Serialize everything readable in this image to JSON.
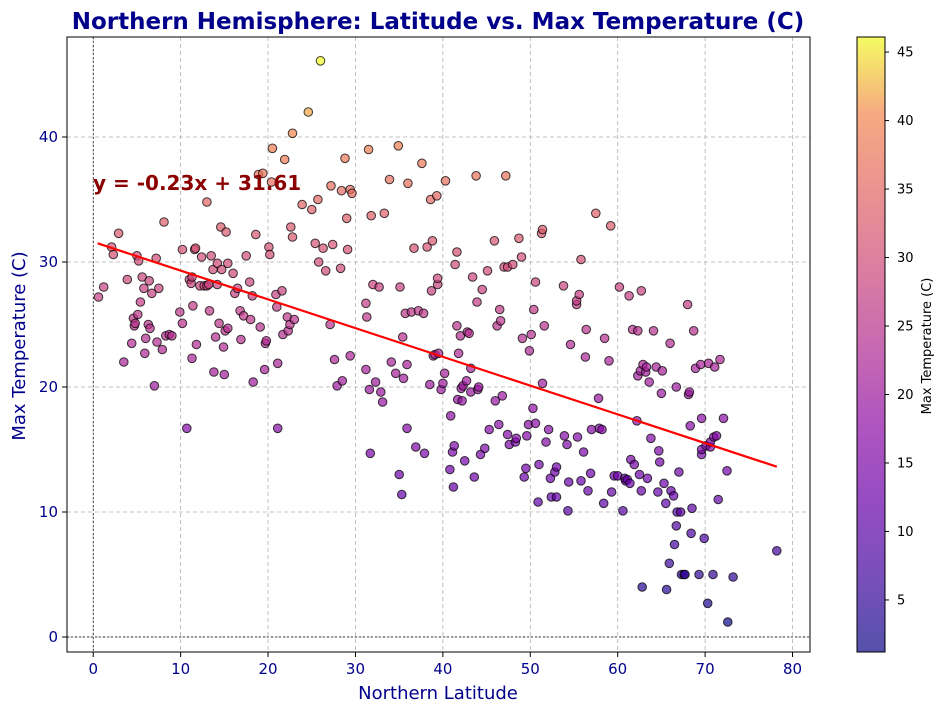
{
  "chart_data": {
    "type": "scatter",
    "title": "Northern Hemisphere: Latitude vs. Max Temperature (C)",
    "xlabel": "Northern Latitude",
    "ylabel": "Max Temperature (C)",
    "xlim": [
      -3,
      82
    ],
    "ylim": [
      -1.2,
      48
    ],
    "xticks": [
      0,
      10,
      20,
      30,
      40,
      50,
      60,
      70,
      80
    ],
    "yticks": [
      0,
      10,
      20,
      30,
      40
    ],
    "grid": true,
    "colormap": "plasma",
    "colorbar": {
      "label": "Max Temperature (C)",
      "range": [
        1.2,
        46.1
      ],
      "ticks": [
        5,
        10,
        15,
        20,
        25,
        30,
        35,
        40,
        45
      ]
    },
    "regression": {
      "slope": -0.23,
      "intercept": 31.61,
      "x_range": [
        0.5,
        78.2
      ],
      "equation": "y = -0.23x + 31.61",
      "color": "#ff0000"
    },
    "annotation_color": "#8b0000",
    "point_style": {
      "edge_color": "#000000",
      "alpha": 0.7
    },
    "points": [
      [
        0.6,
        27.2
      ],
      [
        1.2,
        28.0
      ],
      [
        2.1,
        31.2
      ],
      [
        2.3,
        30.6
      ],
      [
        2.9,
        32.3
      ],
      [
        3.5,
        22.0
      ],
      [
        3.9,
        28.6
      ],
      [
        4.4,
        23.5
      ],
      [
        4.6,
        25.5
      ],
      [
        4.7,
        24.9
      ],
      [
        4.8,
        25.1
      ],
      [
        5.0,
        30.5
      ],
      [
        5.1,
        25.8
      ],
      [
        5.2,
        30.1
      ],
      [
        5.4,
        26.8
      ],
      [
        5.6,
        28.8
      ],
      [
        5.8,
        27.9
      ],
      [
        5.9,
        22.7
      ],
      [
        6.0,
        23.9
      ],
      [
        6.3,
        25.0
      ],
      [
        6.4,
        28.5
      ],
      [
        6.5,
        24.7
      ],
      [
        6.7,
        27.5
      ],
      [
        7.0,
        20.1
      ],
      [
        7.2,
        30.3
      ],
      [
        7.3,
        23.6
      ],
      [
        7.5,
        27.9
      ],
      [
        7.9,
        23.0
      ],
      [
        8.1,
        33.2
      ],
      [
        8.3,
        24.1
      ],
      [
        8.7,
        24.2
      ],
      [
        9.0,
        24.1
      ],
      [
        9.9,
        26.0
      ],
      [
        10.2,
        25.1
      ],
      [
        10.2,
        31.0
      ],
      [
        10.7,
        16.7
      ],
      [
        11.0,
        28.6
      ],
      [
        11.2,
        28.3
      ],
      [
        11.3,
        22.3
      ],
      [
        11.3,
        28.8
      ],
      [
        11.4,
        26.5
      ],
      [
        11.6,
        31.0
      ],
      [
        11.7,
        31.1
      ],
      [
        11.8,
        23.4
      ],
      [
        12.2,
        28.1
      ],
      [
        12.4,
        30.4
      ],
      [
        12.7,
        28.1
      ],
      [
        13.0,
        28.1
      ],
      [
        13.0,
        34.8
      ],
      [
        13.2,
        28.2
      ],
      [
        13.3,
        26.1
      ],
      [
        13.5,
        30.5
      ],
      [
        13.7,
        29.4
      ],
      [
        13.8,
        21.2
      ],
      [
        14.0,
        24.0
      ],
      [
        14.2,
        28.2
      ],
      [
        14.2,
        29.9
      ],
      [
        14.4,
        25.1
      ],
      [
        14.6,
        32.8
      ],
      [
        14.7,
        29.4
      ],
      [
        14.9,
        23.2
      ],
      [
        15.0,
        21.0
      ],
      [
        15.1,
        24.5
      ],
      [
        15.2,
        32.4
      ],
      [
        15.4,
        24.7
      ],
      [
        15.4,
        29.9
      ],
      [
        16.0,
        29.1
      ],
      [
        16.2,
        27.5
      ],
      [
        16.5,
        27.9
      ],
      [
        16.8,
        26.1
      ],
      [
        16.9,
        23.8
      ],
      [
        17.2,
        25.7
      ],
      [
        17.5,
        30.5
      ],
      [
        17.9,
        28.4
      ],
      [
        18.0,
        25.4
      ],
      [
        18.2,
        27.3
      ],
      [
        18.3,
        20.4
      ],
      [
        18.6,
        32.2
      ],
      [
        18.9,
        37.0
      ],
      [
        19.1,
        24.8
      ],
      [
        19.4,
        37.1
      ],
      [
        19.6,
        21.4
      ],
      [
        19.7,
        23.5
      ],
      [
        19.8,
        23.7
      ],
      [
        20.1,
        31.2
      ],
      [
        20.2,
        30.6
      ],
      [
        20.4,
        36.4
      ],
      [
        20.5,
        39.1
      ],
      [
        20.9,
        27.4
      ],
      [
        21.0,
        26.4
      ],
      [
        21.1,
        21.9
      ],
      [
        21.1,
        16.7
      ],
      [
        21.6,
        27.7
      ],
      [
        21.7,
        24.2
      ],
      [
        21.9,
        38.2
      ],
      [
        22.2,
        25.6
      ],
      [
        22.3,
        24.5
      ],
      [
        22.5,
        25.0
      ],
      [
        22.6,
        32.8
      ],
      [
        22.8,
        40.3
      ],
      [
        22.8,
        32.0
      ],
      [
        23.0,
        25.4
      ],
      [
        23.9,
        34.6
      ],
      [
        24.6,
        42.0
      ],
      [
        25.0,
        34.2
      ],
      [
        25.4,
        31.5
      ],
      [
        25.7,
        35.0
      ],
      [
        25.8,
        30.0
      ],
      [
        26.0,
        46.1
      ],
      [
        26.3,
        31.1
      ],
      [
        26.6,
        29.3
      ],
      [
        27.1,
        25.0
      ],
      [
        27.2,
        36.1
      ],
      [
        27.4,
        31.4
      ],
      [
        27.6,
        22.2
      ],
      [
        27.9,
        20.1
      ],
      [
        28.3,
        29.5
      ],
      [
        28.4,
        35.7
      ],
      [
        28.5,
        20.5
      ],
      [
        28.8,
        38.3
      ],
      [
        29.0,
        33.5
      ],
      [
        29.1,
        31.0
      ],
      [
        29.4,
        22.5
      ],
      [
        29.4,
        35.8
      ],
      [
        29.6,
        35.5
      ],
      [
        31.2,
        21.4
      ],
      [
        31.2,
        26.7
      ],
      [
        31.3,
        25.6
      ],
      [
        31.5,
        39.0
      ],
      [
        31.6,
        19.8
      ],
      [
        31.7,
        14.7
      ],
      [
        31.8,
        33.7
      ],
      [
        32.0,
        28.2
      ],
      [
        32.3,
        20.4
      ],
      [
        32.7,
        28.0
      ],
      [
        32.9,
        19.6
      ],
      [
        33.1,
        18.8
      ],
      [
        33.3,
        33.9
      ],
      [
        33.9,
        36.6
      ],
      [
        34.1,
        22.0
      ],
      [
        34.6,
        21.1
      ],
      [
        34.9,
        39.3
      ],
      [
        35.0,
        13.0
      ],
      [
        35.1,
        28.0
      ],
      [
        35.3,
        11.4
      ],
      [
        35.4,
        24.0
      ],
      [
        35.5,
        20.7
      ],
      [
        35.7,
        25.9
      ],
      [
        35.9,
        16.7
      ],
      [
        35.9,
        21.8
      ],
      [
        36.0,
        36.3
      ],
      [
        36.4,
        26.0
      ],
      [
        36.7,
        31.1
      ],
      [
        36.9,
        15.2
      ],
      [
        37.2,
        26.1
      ],
      [
        37.6,
        37.9
      ],
      [
        37.8,
        25.9
      ],
      [
        37.9,
        14.7
      ],
      [
        38.2,
        31.2
      ],
      [
        38.5,
        20.2
      ],
      [
        38.6,
        35.0
      ],
      [
        38.7,
        27.7
      ],
      [
        38.8,
        31.7
      ],
      [
        38.9,
        22.5
      ],
      [
        39.1,
        22.6
      ],
      [
        39.3,
        35.3
      ],
      [
        39.4,
        28.2
      ],
      [
        39.4,
        28.7
      ],
      [
        39.5,
        22.7
      ],
      [
        39.8,
        19.8
      ],
      [
        40.0,
        20.3
      ],
      [
        40.2,
        21.1
      ],
      [
        40.3,
        36.5
      ],
      [
        40.8,
        13.4
      ],
      [
        40.9,
        17.7
      ],
      [
        41.1,
        14.8
      ],
      [
        41.2,
        12.0
      ],
      [
        41.3,
        15.3
      ],
      [
        41.4,
        29.8
      ],
      [
        41.6,
        30.8
      ],
      [
        41.6,
        24.9
      ],
      [
        41.7,
        19.0
      ],
      [
        41.8,
        22.7
      ],
      [
        42.0,
        24.1
      ],
      [
        42.1,
        19.9
      ],
      [
        42.2,
        18.9
      ],
      [
        42.3,
        20.1
      ],
      [
        42.5,
        14.1
      ],
      [
        42.7,
        20.5
      ],
      [
        42.8,
        24.4
      ],
      [
        43.0,
        24.3
      ],
      [
        43.2,
        21.5
      ],
      [
        43.2,
        19.6
      ],
      [
        43.4,
        28.8
      ],
      [
        43.6,
        12.8
      ],
      [
        43.8,
        36.9
      ],
      [
        43.9,
        26.8
      ],
      [
        44.0,
        19.8
      ],
      [
        44.1,
        20.0
      ],
      [
        44.3,
        14.6
      ],
      [
        44.5,
        27.8
      ],
      [
        44.8,
        15.1
      ],
      [
        45.1,
        29.3
      ],
      [
        45.3,
        16.6
      ],
      [
        45.9,
        31.7
      ],
      [
        46.0,
        18.9
      ],
      [
        46.2,
        24.9
      ],
      [
        46.4,
        17.0
      ],
      [
        46.5,
        26.2
      ],
      [
        46.6,
        25.3
      ],
      [
        46.8,
        19.3
      ],
      [
        47.0,
        29.6
      ],
      [
        47.2,
        36.9
      ],
      [
        47.4,
        29.6
      ],
      [
        47.4,
        16.2
      ],
      [
        47.6,
        15.4
      ],
      [
        48.0,
        29.8
      ],
      [
        48.3,
        15.6
      ],
      [
        48.4,
        15.9
      ],
      [
        48.7,
        31.9
      ],
      [
        49.0,
        30.4
      ],
      [
        49.1,
        23.9
      ],
      [
        49.3,
        12.8
      ],
      [
        49.5,
        13.5
      ],
      [
        49.6,
        16.1
      ],
      [
        49.8,
        17.0
      ],
      [
        49.9,
        22.9
      ],
      [
        50.1,
        24.2
      ],
      [
        50.3,
        18.3
      ],
      [
        50.4,
        26.2
      ],
      [
        50.6,
        28.4
      ],
      [
        50.6,
        17.1
      ],
      [
        50.9,
        10.8
      ],
      [
        51.0,
        13.8
      ],
      [
        51.3,
        32.3
      ],
      [
        51.4,
        32.6
      ],
      [
        51.4,
        20.3
      ],
      [
        51.6,
        24.9
      ],
      [
        51.8,
        15.6
      ],
      [
        52.1,
        16.6
      ],
      [
        52.3,
        12.7
      ],
      [
        52.4,
        11.2
      ],
      [
        52.8,
        13.2
      ],
      [
        53.0,
        11.2
      ],
      [
        53.0,
        13.6
      ],
      [
        53.8,
        28.1
      ],
      [
        53.9,
        16.1
      ],
      [
        54.2,
        15.4
      ],
      [
        54.3,
        10.1
      ],
      [
        54.4,
        12.4
      ],
      [
        54.6,
        23.4
      ],
      [
        55.3,
        26.6
      ],
      [
        55.3,
        26.9
      ],
      [
        55.4,
        16.0
      ],
      [
        55.6,
        27.4
      ],
      [
        55.8,
        12.5
      ],
      [
        55.8,
        30.2
      ],
      [
        56.1,
        14.8
      ],
      [
        56.3,
        22.4
      ],
      [
        56.4,
        24.6
      ],
      [
        56.6,
        11.7
      ],
      [
        56.9,
        13.1
      ],
      [
        57.0,
        16.6
      ],
      [
        57.5,
        33.9
      ],
      [
        57.8,
        19.1
      ],
      [
        57.9,
        16.7
      ],
      [
        58.2,
        16.6
      ],
      [
        58.4,
        10.7
      ],
      [
        58.5,
        23.9
      ],
      [
        59.0,
        22.1
      ],
      [
        59.2,
        32.9
      ],
      [
        59.3,
        11.6
      ],
      [
        59.6,
        12.9
      ],
      [
        60.0,
        12.9
      ],
      [
        60.2,
        28.0
      ],
      [
        60.6,
        10.1
      ],
      [
        60.8,
        12.7
      ],
      [
        60.9,
        12.5
      ],
      [
        61.1,
        12.6
      ],
      [
        61.3,
        27.3
      ],
      [
        61.4,
        12.3
      ],
      [
        61.5,
        14.2
      ],
      [
        61.7,
        24.6
      ],
      [
        61.9,
        13.8
      ],
      [
        62.2,
        17.3
      ],
      [
        62.3,
        24.5
      ],
      [
        62.3,
        20.9
      ],
      [
        62.5,
        13.0
      ],
      [
        62.6,
        21.3
      ],
      [
        62.7,
        27.7
      ],
      [
        62.7,
        11.7
      ],
      [
        62.8,
        4.0
      ],
      [
        62.9,
        21.8
      ],
      [
        63.2,
        21.2
      ],
      [
        63.3,
        21.6
      ],
      [
        63.4,
        12.7
      ],
      [
        63.6,
        20.4
      ],
      [
        63.8,
        15.9
      ],
      [
        64.1,
        24.5
      ],
      [
        64.4,
        21.6
      ],
      [
        64.6,
        11.6
      ],
      [
        64.7,
        14.9
      ],
      [
        64.8,
        14.0
      ],
      [
        65.0,
        19.5
      ],
      [
        65.1,
        21.3
      ],
      [
        65.3,
        12.3
      ],
      [
        65.5,
        10.7
      ],
      [
        65.6,
        3.8
      ],
      [
        65.9,
        5.9
      ],
      [
        66.0,
        23.5
      ],
      [
        66.1,
        11.7
      ],
      [
        66.4,
        11.3
      ],
      [
        66.5,
        7.4
      ],
      [
        66.7,
        20.0
      ],
      [
        66.7,
        8.9
      ],
      [
        66.8,
        10.0
      ],
      [
        67.0,
        13.2
      ],
      [
        67.2,
        10.0
      ],
      [
        67.3,
        5.0
      ],
      [
        67.6,
        5.0
      ],
      [
        67.7,
        5.0
      ],
      [
        68.0,
        26.6
      ],
      [
        68.1,
        19.4
      ],
      [
        68.2,
        19.6
      ],
      [
        68.3,
        16.9
      ],
      [
        68.4,
        8.3
      ],
      [
        68.5,
        10.3
      ],
      [
        68.7,
        24.5
      ],
      [
        68.9,
        21.5
      ],
      [
        69.3,
        5.0
      ],
      [
        69.5,
        21.8
      ],
      [
        69.6,
        14.6
      ],
      [
        69.6,
        15.0
      ],
      [
        69.6,
        17.5
      ],
      [
        69.9,
        7.9
      ],
      [
        70.1,
        15.3
      ],
      [
        70.3,
        2.7
      ],
      [
        70.4,
        21.9
      ],
      [
        70.6,
        15.2
      ],
      [
        70.6,
        15.6
      ],
      [
        70.9,
        5.0
      ],
      [
        71.0,
        16.0
      ],
      [
        71.1,
        21.6
      ],
      [
        71.3,
        16.1
      ],
      [
        71.5,
        11.0
      ],
      [
        71.7,
        22.2
      ],
      [
        72.1,
        17.5
      ],
      [
        72.5,
        13.3
      ],
      [
        72.6,
        1.2
      ],
      [
        73.2,
        4.8
      ],
      [
        78.2,
        6.9
      ]
    ]
  }
}
